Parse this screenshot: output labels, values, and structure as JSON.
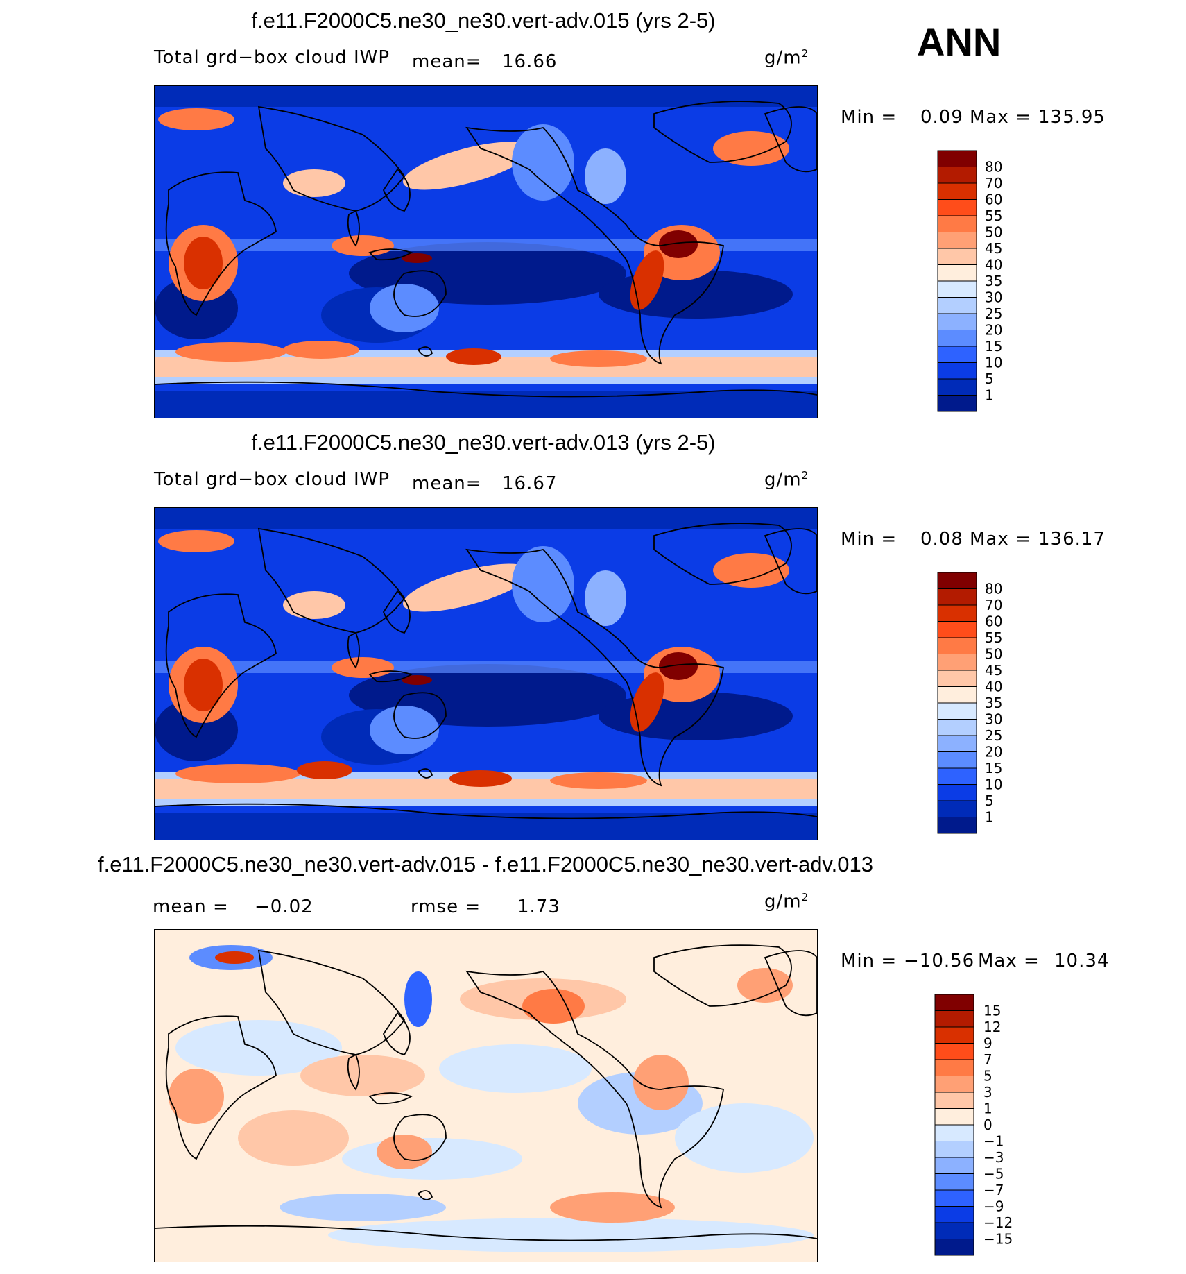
{
  "season": "ANN",
  "units_label": "g/m",
  "units_sup": "2",
  "panels": [
    {
      "title": "f.e11.F2000C5.ne30_ne30.vert-adv.015 (yrs 2-5)",
      "left_label": "Total grd−box cloud IWP",
      "mean_label": "mean=",
      "mean_value": "16.66",
      "min_label": "Min =",
      "min_value": "0.09",
      "max_label": "Max =",
      "max_value": "135.95"
    },
    {
      "title": "f.e11.F2000C5.ne30_ne30.vert-adv.013 (yrs 2-5)",
      "left_label": "Total grd−box cloud IWP",
      "mean_label": "mean=",
      "mean_value": "16.67",
      "min_label": "Min =",
      "min_value": "0.08",
      "max_label": "Max =",
      "max_value": "136.17"
    },
    {
      "title": "f.e11.F2000C5.ne30_ne30.vert-adv.015 - f.e11.F2000C5.ne30_ne30.vert-adv.013",
      "mean_label": "mean =",
      "mean_value": "−0.02",
      "rmse_label": "rmse =",
      "rmse_value": "1.73",
      "min_label": "Min =",
      "min_value": "−10.56",
      "max_label": "Max =",
      "max_value": "10.34"
    }
  ],
  "colorbar_abs": {
    "labels": [
      "80",
      "70",
      "60",
      "55",
      "50",
      "45",
      "40",
      "35",
      "30",
      "25",
      "20",
      "15",
      "10",
      "5",
      "1"
    ],
    "colors": [
      "#800000",
      "#b31b00",
      "#d93000",
      "#ff4d1a",
      "#ff7a45",
      "#ffa075",
      "#ffc7a8",
      "#ffeedd",
      "#d7e9ff",
      "#b3cfff",
      "#8cb1ff",
      "#5c8cff",
      "#2e62ff",
      "#0b3ce6",
      "#002bb8",
      "#001a8c"
    ]
  },
  "colorbar_diff": {
    "labels": [
      "15",
      "12",
      "9",
      "7",
      "5",
      "3",
      "1",
      "0",
      "−1",
      "−3",
      "−5",
      "−7",
      "−9",
      "−12",
      "−15"
    ],
    "colors": [
      "#800000",
      "#b31b00",
      "#d93000",
      "#ff4d1a",
      "#ff7a45",
      "#ffa075",
      "#ffc7a8",
      "#ffeedd",
      "#d7e9ff",
      "#b3cfff",
      "#8cb1ff",
      "#5c8cff",
      "#2e62ff",
      "#0b3ce6",
      "#002bb8",
      "#001a8c"
    ]
  },
  "map_palette": {
    "abs_background": "#0b3ce6",
    "diff_background": "#ffeedd"
  }
}
